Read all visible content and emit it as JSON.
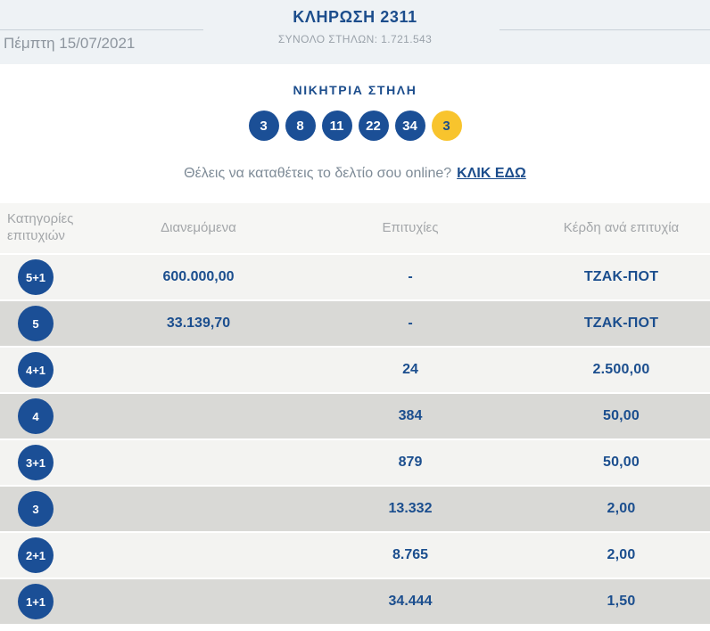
{
  "colors": {
    "navy": "#1c4d8c",
    "ball_blue": "#1b4f96",
    "joker_yellow": "#f8c42d",
    "light_row": "#f3f3f1",
    "dark_row": "#d9d9d6"
  },
  "header": {
    "title": "ΚΛΗΡΩΣΗ 2311",
    "date": "Πέμπτη 15/07/2021",
    "total_columns": "ΣΥΝΟΛΟ ΣΤΗΛΩΝ: 1.721.543"
  },
  "winning": {
    "heading": "ΝΙΚΗΤΡΙΑ ΣΤΗΛΗ",
    "numbers": [
      "3",
      "8",
      "11",
      "22",
      "34"
    ],
    "joker": "3"
  },
  "cta": {
    "text": "Θέλεις να καταθέτεις το δελτίο σου online?",
    "link": "ΚΛΙΚ ΕΔΩ"
  },
  "table": {
    "headers": [
      "Κατηγορίες επιτυχιών",
      "Διανεμόμενα",
      "Επιτυχίες",
      "Κέρδη ανά επιτυχία"
    ],
    "rows": [
      {
        "category": "5+1",
        "distributed": "600.000,00",
        "winners": "-",
        "prize": "ΤΖΑΚ-ΠΟΤ"
      },
      {
        "category": "5",
        "distributed": "33.139,70",
        "winners": "-",
        "prize": "ΤΖΑΚ-ΠΟΤ"
      },
      {
        "category": "4+1",
        "distributed": "",
        "winners": "24",
        "prize": "2.500,00"
      },
      {
        "category": "4",
        "distributed": "",
        "winners": "384",
        "prize": "50,00"
      },
      {
        "category": "3+1",
        "distributed": "",
        "winners": "879",
        "prize": "50,00"
      },
      {
        "category": "3",
        "distributed": "",
        "winners": "13.332",
        "prize": "2,00"
      },
      {
        "category": "2+1",
        "distributed": "",
        "winners": "8.765",
        "prize": "2,00"
      },
      {
        "category": "1+1",
        "distributed": "",
        "winners": "34.444",
        "prize": "1,50"
      }
    ]
  }
}
